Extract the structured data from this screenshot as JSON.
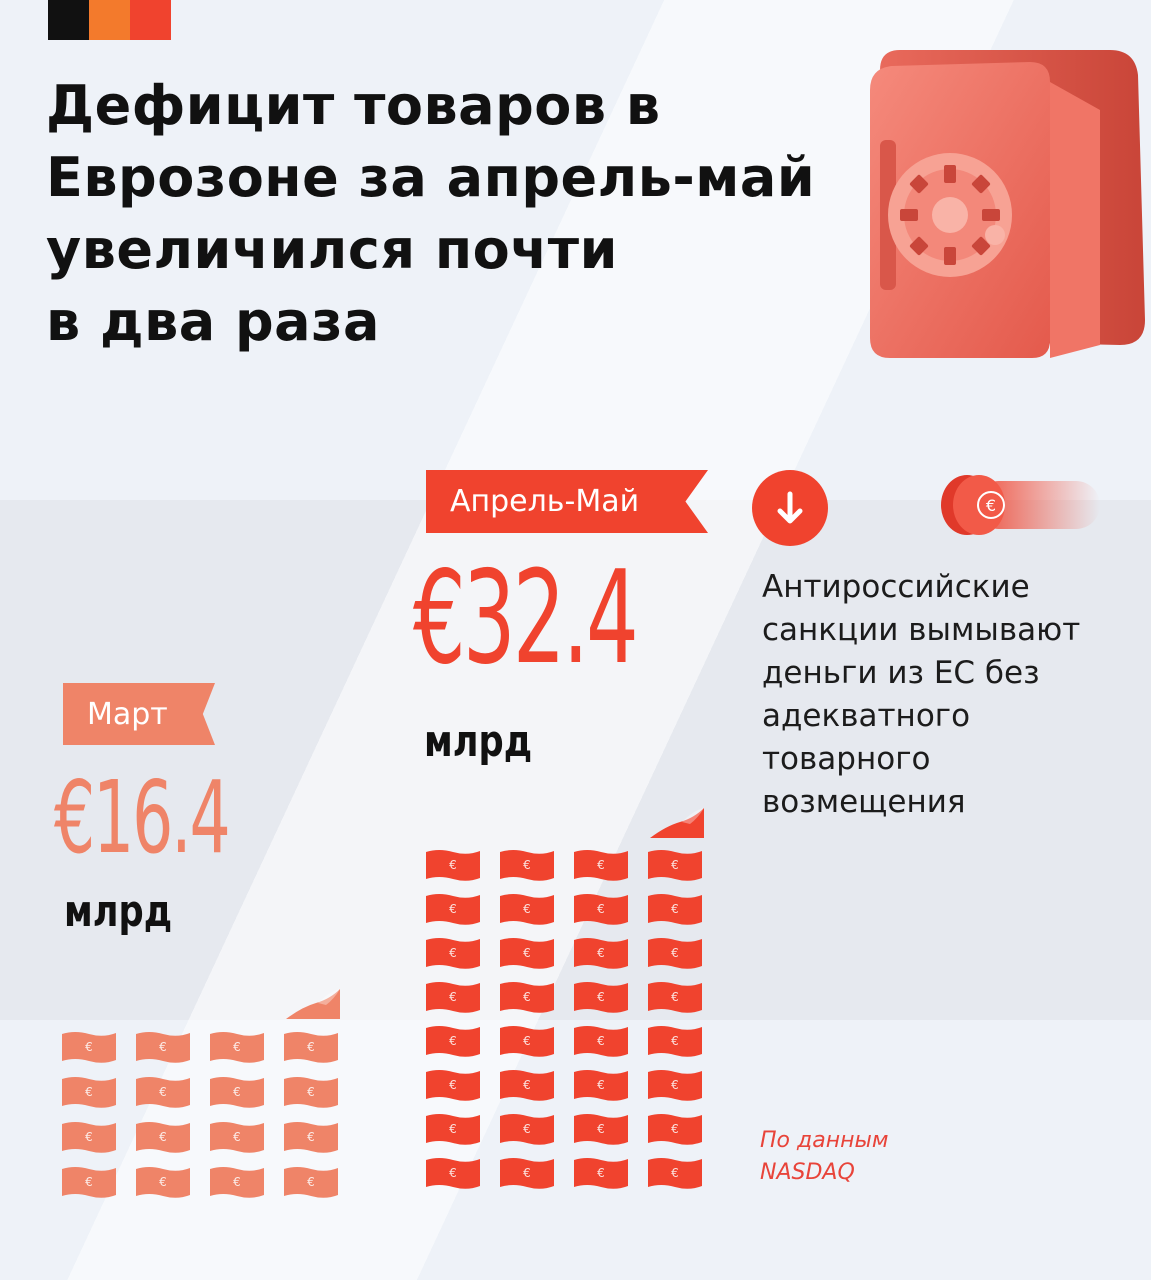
{
  "headline": {
    "lines": [
      "Дефицит товаров в",
      "Еврозоне за апрель-май",
      "увеличился почти",
      "в два раза"
    ]
  },
  "march": {
    "label": "Март",
    "value": "€16.4",
    "unit": "млрд",
    "bill_symbol": "€"
  },
  "april_may": {
    "label": "Апрель-Май",
    "value": "€32.4",
    "unit": "млрд",
    "bill_symbol": "€"
  },
  "note": {
    "lines": [
      "Антироссийские",
      "санкции вымывают",
      "деньги из ЕС без",
      "адекватного",
      "товарного",
      "возмещения"
    ]
  },
  "source": {
    "lines": [
      "По данным",
      "NASDAQ"
    ]
  },
  "icons": {
    "arrow": "arrow-down-circle-icon",
    "coin": "euro-coin-icon",
    "safe": "safe-icon"
  },
  "colors": {
    "background": "#eef2f8",
    "accent_red": "#f0432e",
    "accent_salmon": "#ef8468",
    "text_dark": "#111111",
    "flag_black": "#111111",
    "flag_orange": "#f37a2c",
    "flag_red": "#f0432e"
  }
}
